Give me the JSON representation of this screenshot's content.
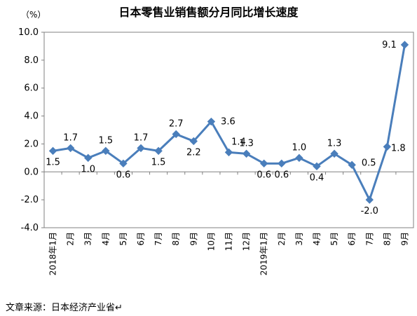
{
  "chart_data": {
    "type": "line",
    "title": "日本零售业销售额分月同比增长速度",
    "ylabel": "（%）",
    "xlabel": "",
    "ylim": [
      -4.0,
      10.0
    ],
    "yticks": [
      "10.0",
      "8.0",
      "6.0",
      "4.0",
      "2.0",
      "0.0",
      "-2.0",
      "-4.0"
    ],
    "grid": false,
    "legend": "none",
    "categories": [
      "2018年1月",
      "2月",
      "3月",
      "4月",
      "5月",
      "6月",
      "7月",
      "8月",
      "9月",
      "10月",
      "11月",
      "12月",
      "2019年1月",
      "2月",
      "3月",
      "4月",
      "5月",
      "6月",
      "7月",
      "8月",
      "9月"
    ],
    "values": [
      1.5,
      1.7,
      1.0,
      1.5,
      0.6,
      1.7,
      1.5,
      2.7,
      2.2,
      3.6,
      1.4,
      1.3,
      0.6,
      0.6,
      1.0,
      0.4,
      1.3,
      0.5,
      -2.0,
      1.8,
      9.1
    ],
    "data_labels": [
      "1.5",
      "1.7",
      "1.0",
      "1.5",
      "0.6",
      "1.7",
      "1.5",
      "2.7",
      "2.2",
      "3.6",
      "1.4",
      "1.3",
      "0.6",
      "0.6",
      "1.0",
      "0.4",
      "1.3",
      "0.5",
      "-2.0",
      "1.8",
      "9.1"
    ],
    "line_color": "#4a7ebb"
  },
  "footer": {
    "source": "文章来源：日本经济产业省↵"
  }
}
